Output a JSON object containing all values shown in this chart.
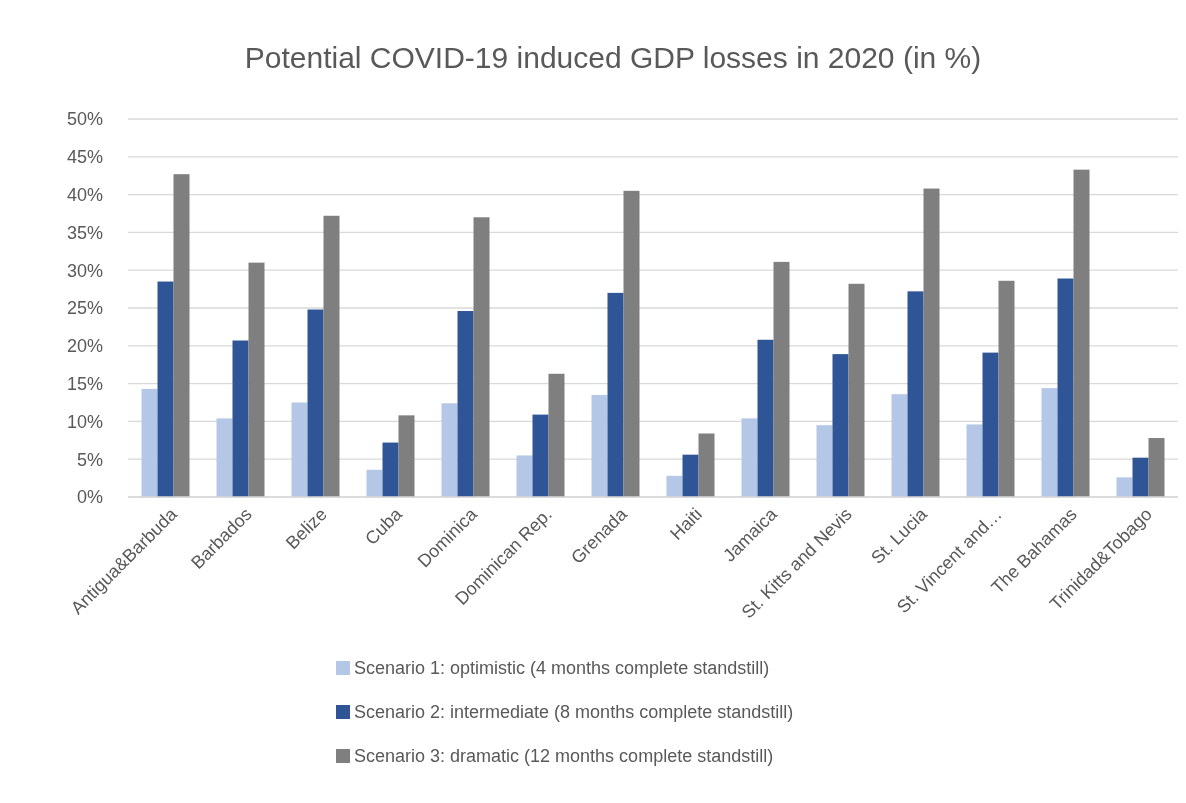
{
  "chart_data": {
    "type": "bar",
    "title": "Potential COVID-19 induced GDP losses in 2020 (in %)",
    "categories": [
      "Antigua&Barbuda",
      "Barbados",
      "Belize",
      "Cuba",
      "Dominica",
      "Dominican Rep.",
      "Grenada",
      "Haiti",
      "Jamaica",
      "St. Kitts and Nevis",
      "St. Lucia",
      "St. Vincent and…",
      "The Bahamas",
      "Trinidad&Tobago"
    ],
    "series": [
      {
        "name": "Scenario 1: optimistic (4 months complete standstill)",
        "color": "#b4c7e7",
        "values": [
          14.3,
          10.4,
          12.5,
          3.6,
          12.4,
          5.5,
          13.5,
          2.8,
          10.4,
          9.5,
          13.6,
          9.6,
          14.4,
          2.6
        ]
      },
      {
        "name": "Scenario 2: intermediate (8 months complete standstill)",
        "color": "#2f5597",
        "values": [
          28.5,
          20.7,
          24.8,
          7.2,
          24.6,
          10.9,
          27.0,
          5.6,
          20.8,
          18.9,
          27.2,
          19.1,
          28.9,
          5.2
        ]
      },
      {
        "name": "Scenario 3: dramatic (12 months complete standstill)",
        "color": "#7f7f7f",
        "values": [
          42.7,
          31.0,
          37.2,
          10.8,
          37.0,
          16.3,
          40.5,
          8.4,
          31.1,
          28.2,
          40.8,
          28.6,
          43.3,
          7.8
        ]
      }
    ],
    "ylim": [
      0,
      50
    ],
    "yticks": [
      {
        "value": 0,
        "label": "0%"
      },
      {
        "value": 5,
        "label": "5%"
      },
      {
        "value": 10,
        "label": "10%"
      },
      {
        "value": 15,
        "label": "15%"
      },
      {
        "value": 20,
        "label": "20%"
      },
      {
        "value": 25,
        "label": "25%"
      },
      {
        "value": 30,
        "label": "30%"
      },
      {
        "value": 35,
        "label": "35%"
      },
      {
        "value": 40,
        "label": "40%"
      },
      {
        "value": 45,
        "label": "45%"
      },
      {
        "value": 50,
        "label": "50%"
      }
    ],
    "grid": "y",
    "legend": "bottom"
  }
}
